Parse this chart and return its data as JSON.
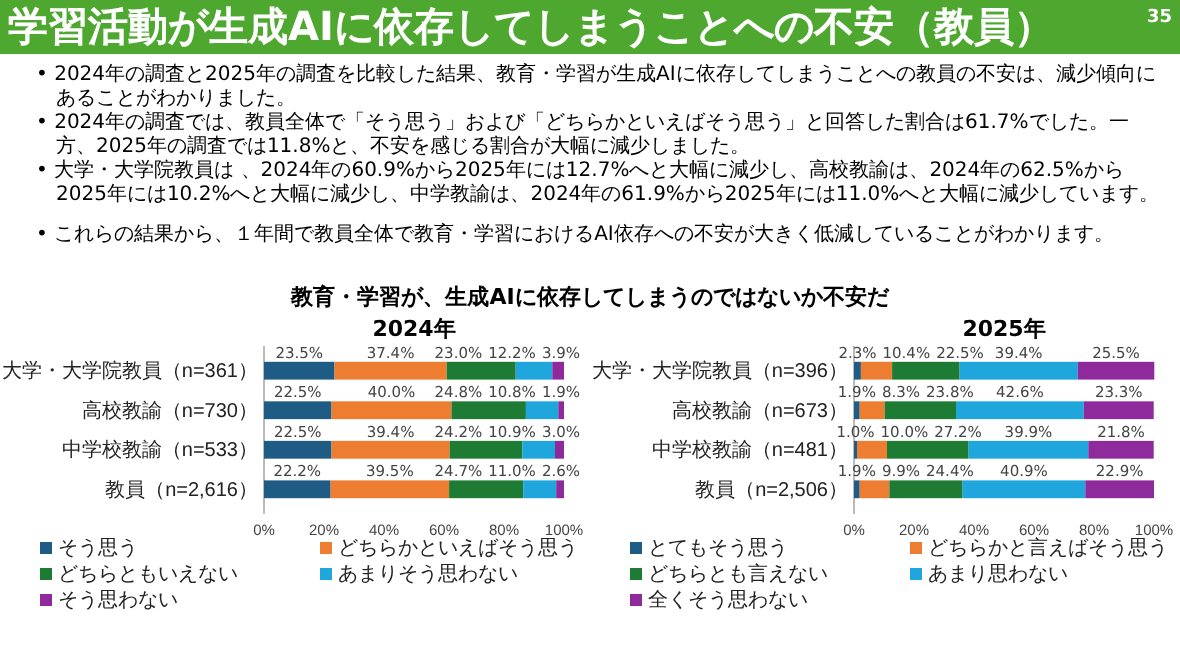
{
  "chart_data": [
    {
      "type": "other",
      "title": "学習活動が生成AIに依存してしまうことへの不安（教員）",
      "subtitle": "教育・学習が、生成AIに依存してしまうのではないか不安だ",
      "annotations": [
        "• 2024年の調査と2025年の調査を比較した結果、教育・学習が生成AIに依存してしまうことへの教員の不安は、減少傾向にあることがわかりました。",
        "• 2024年の調査では、教員全体で「そう思う」および「どちらかといえばそう思う」と回答した割合は61.7%でした。一方、2025年の調査では11.8%と、不安を感じる割合が大幅に減少しました。",
        "• 大学・大学院教員は 、2024年の60.9%から2025年には12.7%へと大幅に減少し、高校教諭は、2024年の62.5%から2025年には10.2%へと大幅に減少し、中学教諭は、2024年の61.9%から2025年には11.0%へと大幅に減少しています。",
        "• これらの結果から、１年間で教員全体で教育・学習におけるAI依存への不安が大きく低減していることがわかります。",
        "35"
      ]
    },
    {
      "type": "bar",
      "title": "2024年",
      "orientation": "horizontal",
      "stacked": true,
      "legend": "bottom",
      "categories": [
        "大学・大学院教員（n=361）",
        "高校教諭（n=730）",
        "中学校教諭（n=533）",
        "教員（n=2,616）"
      ],
      "xlim": [
        0,
        100
      ],
      "xticks": [
        {
          "value": 0,
          "label": "0%"
        },
        {
          "value": 20,
          "label": "20%"
        },
        {
          "value": 40,
          "label": "40%"
        },
        {
          "value": 60,
          "label": "60%"
        },
        {
          "value": 80,
          "label": "80%"
        },
        {
          "value": 100,
          "label": "100%"
        }
      ],
      "series": [
        {
          "name": "そう思う",
          "color": "#1f5c85",
          "values": [
            23.5,
            22.5,
            22.5,
            22.2
          ],
          "value_labels": [
            "23.5%",
            "22.5%",
            "22.5%",
            "22.2%"
          ]
        },
        {
          "name": "どちらかといえばそう思う",
          "color": "#ed7d31",
          "values": [
            37.4,
            40.0,
            39.4,
            39.5
          ],
          "value_labels": [
            "37.4%",
            "40.0%",
            "39.4%",
            "39.5%"
          ]
        },
        {
          "name": "どちらともいえない",
          "color": "#1e7b34",
          "values": [
            23.0,
            24.8,
            24.2,
            24.7
          ],
          "value_labels": [
            "23.0%",
            "24.8%",
            "24.2%",
            "24.7%"
          ]
        },
        {
          "name": "あまりそう思わない",
          "color": "#1fa6dc",
          "values": [
            12.2,
            10.8,
            10.9,
            11.0
          ],
          "value_labels": [
            "12.2%",
            "10.8%",
            "10.9%",
            "11.0%"
          ]
        },
        {
          "name": "そう思わない",
          "color": "#8e2a9c",
          "values": [
            3.9,
            1.9,
            3.0,
            2.6
          ],
          "value_labels": [
            "3.9%",
            "1.9%",
            "3.0%",
            "2.6%"
          ]
        }
      ]
    },
    {
      "type": "bar",
      "title": "2025年",
      "orientation": "horizontal",
      "stacked": true,
      "legend": "bottom",
      "categories": [
        "大学・大学院教員（n=396）",
        "高校教諭（n=673）",
        "中学校教諭（n=481）",
        "教員（n=2,506）"
      ],
      "xlim": [
        0,
        100
      ],
      "xticks": [
        {
          "value": 0,
          "label": "0%"
        },
        {
          "value": 20,
          "label": "20%"
        },
        {
          "value": 40,
          "label": "40%"
        },
        {
          "value": 60,
          "label": "60%"
        },
        {
          "value": 80,
          "label": "80%"
        },
        {
          "value": 100,
          "label": "100%"
        }
      ],
      "series": [
        {
          "name": "とてもそう思う",
          "color": "#1f5c85",
          "values": [
            2.3,
            1.9,
            1.0,
            1.9
          ],
          "value_labels": [
            "2.3%",
            "1.9%",
            "1.0%",
            "1.9%"
          ]
        },
        {
          "name": "どちらかと言えばそう思う",
          "color": "#ed7d31",
          "values": [
            10.4,
            8.3,
            10.0,
            9.9
          ],
          "value_labels": [
            "10.4%",
            "8.3%",
            "10.0%",
            "9.9%"
          ]
        },
        {
          "name": "どちらとも言えない",
          "color": "#1e7b34",
          "values": [
            22.5,
            23.8,
            27.2,
            24.4
          ],
          "value_labels": [
            "22.5%",
            "23.8%",
            "27.2%",
            "24.4%"
          ]
        },
        {
          "name": "あまり思わない",
          "color": "#1fa6dc",
          "values": [
            39.4,
            42.6,
            39.9,
            40.9
          ],
          "value_labels": [
            "39.4%",
            "42.6%",
            "39.9%",
            "40.9%"
          ]
        },
        {
          "name": "全くそう思わない",
          "color": "#8e2a9c",
          "values": [
            25.5,
            23.3,
            21.8,
            22.9
          ],
          "value_labels": [
            "25.5%",
            "23.3%",
            "21.8%",
            "22.9%"
          ]
        }
      ]
    }
  ]
}
